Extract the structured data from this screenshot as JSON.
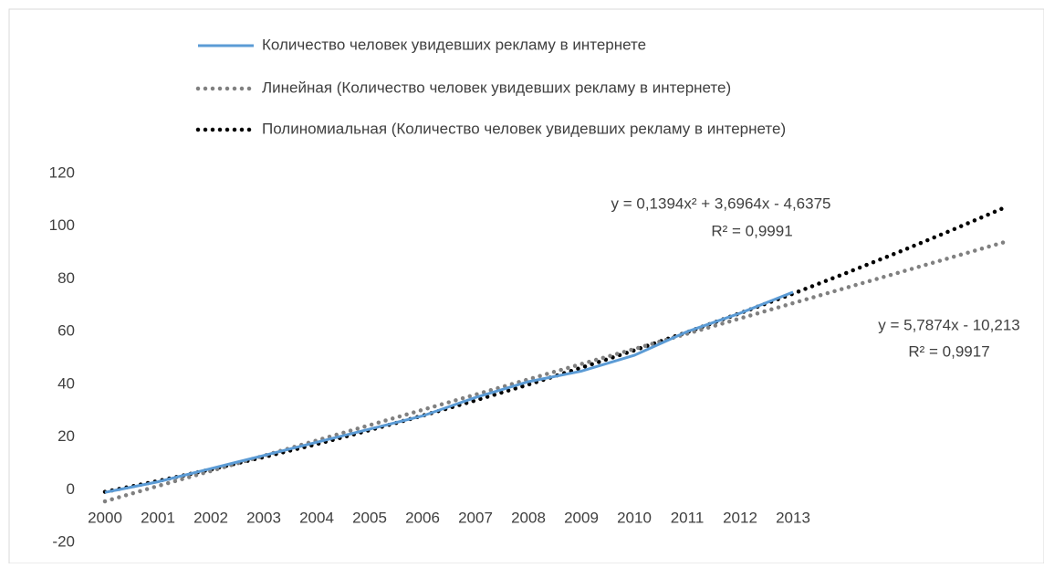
{
  "chart_data": {
    "type": "line",
    "categories": [
      "2000",
      "2001",
      "2002",
      "2003",
      "2004",
      "2005",
      "2006",
      "2007",
      "2008",
      "2009",
      "2010",
      "2011",
      "2012",
      "2013",
      null,
      null,
      null,
      null
    ],
    "series": [
      {
        "name": "Количество человек увидевших рекламу в интернете",
        "color": "#5b9bd5",
        "style": "solid",
        "values": [
          -1,
          3,
          8,
          13,
          18,
          23,
          28,
          35,
          41,
          45,
          51,
          60,
          67,
          75,
          null,
          null,
          null,
          null
        ]
      },
      {
        "name": "Линейная (Количество человек увидевших рекламу в интернете)",
        "color": "#808080",
        "style": "dotted",
        "values": [
          -4.4,
          1.4,
          7.1,
          12.9,
          18.7,
          24.5,
          30.3,
          36.1,
          41.9,
          47.7,
          53.4,
          59.2,
          65.0,
          70.8,
          76.6,
          82.4,
          88.2,
          94.0
        ]
      },
      {
        "name": "Полиномиальная (Количество человек увидевших рекламу в интернете)",
        "color": "#000000",
        "style": "dotted",
        "values": [
          -0.8,
          3.3,
          7.7,
          12.4,
          17.3,
          22.6,
          28.1,
          33.9,
          39.9,
          46.3,
          52.9,
          59.8,
          67.0,
          74.4,
          82.2,
          90.2,
          98.5,
          107.1
        ]
      }
    ],
    "annotations": [
      "y = 0,1394x² + 3,6964x - 4,6375",
      "R² = 0,9991",
      "y = 5,7874x - 10,213",
      "R² = 0,9917"
    ],
    "ylim": [
      -20,
      120
    ],
    "yticks": [
      -20,
      0,
      20,
      40,
      60,
      80,
      100,
      120
    ],
    "grid": false,
    "legend": "top"
  }
}
